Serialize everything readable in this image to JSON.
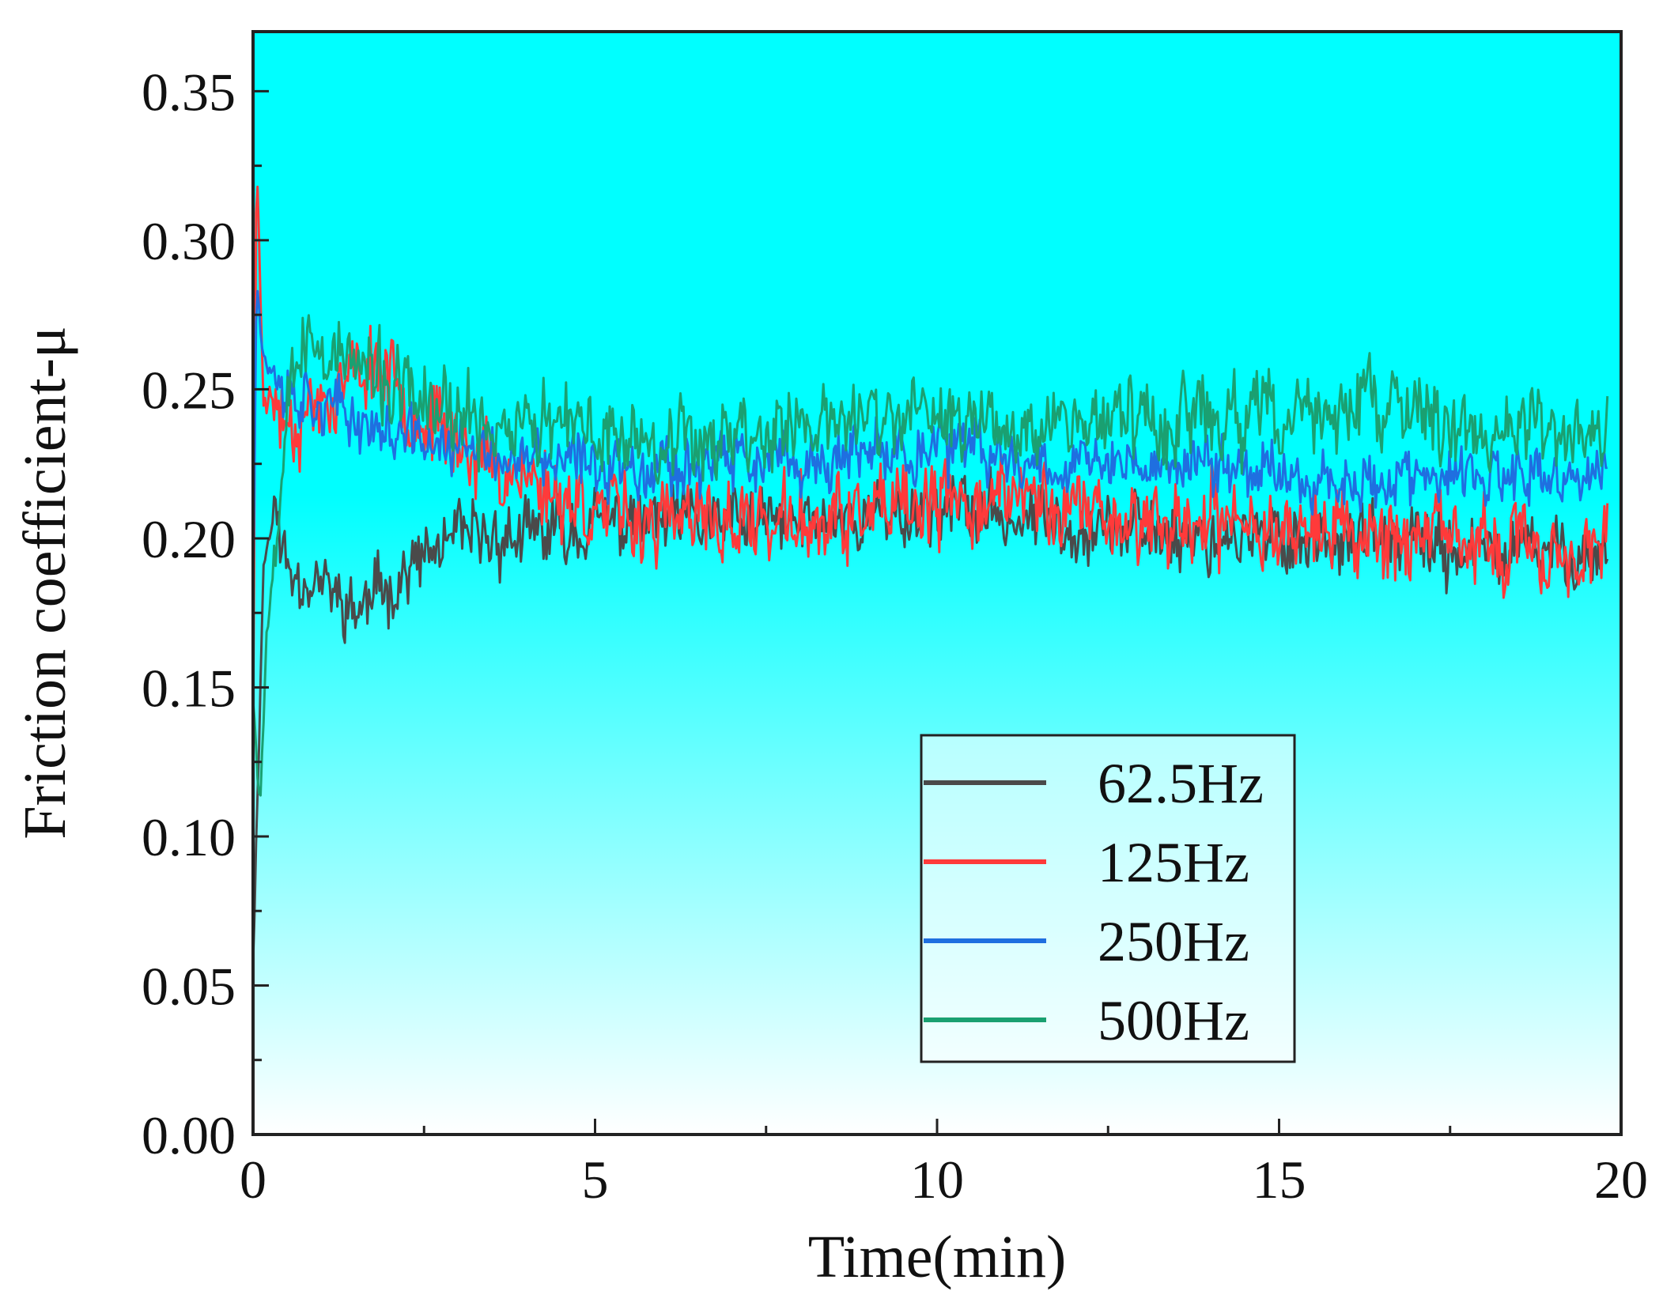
{
  "chart_data": {
    "type": "line",
    "title": "",
    "xlabel": "Time(min)",
    "ylabel": "Friction coefficient-μ",
    "xlim": [
      0,
      20
    ],
    "ylim": [
      0,
      0.37
    ],
    "xticks": [
      "0",
      "5",
      "10",
      "15",
      "20"
    ],
    "yticks": [
      "0.00",
      "0.05",
      "0.10",
      "0.15",
      "0.20",
      "0.25",
      "0.30",
      "0.35"
    ],
    "background_gradient": {
      "top": "#00ffff",
      "bottom": "#ffffff"
    },
    "legend_position": "bottom-right",
    "series": [
      {
        "name": "62.5Hz",
        "color": "#4a4a4a",
        "noise": 0.018,
        "seed": 11,
        "points": [
          [
            0,
            0.06
          ],
          [
            0.05,
            0.1
          ],
          [
            0.15,
            0.19
          ],
          [
            0.3,
            0.21
          ],
          [
            0.5,
            0.19
          ],
          [
            1.0,
            0.185
          ],
          [
            1.5,
            0.175
          ],
          [
            2.0,
            0.185
          ],
          [
            3.0,
            0.2
          ],
          [
            4.0,
            0.2
          ],
          [
            5.0,
            0.205
          ],
          [
            6.0,
            0.205
          ],
          [
            8.0,
            0.205
          ],
          [
            10.0,
            0.21
          ],
          [
            12.0,
            0.205
          ],
          [
            14.0,
            0.2
          ],
          [
            16.0,
            0.2
          ],
          [
            18.0,
            0.195
          ],
          [
            19.8,
            0.195
          ]
        ]
      },
      {
        "name": "125Hz",
        "color": "#ff3a3a",
        "noise": 0.022,
        "seed": 23,
        "points": [
          [
            0,
            0.13
          ],
          [
            0.05,
            0.33
          ],
          [
            0.15,
            0.25
          ],
          [
            0.5,
            0.24
          ],
          [
            1.0,
            0.245
          ],
          [
            1.8,
            0.26
          ],
          [
            2.5,
            0.24
          ],
          [
            3.5,
            0.225
          ],
          [
            4.5,
            0.215
          ],
          [
            5.0,
            0.21
          ],
          [
            6.0,
            0.205
          ],
          [
            8.0,
            0.205
          ],
          [
            10.0,
            0.21
          ],
          [
            11.0,
            0.215
          ],
          [
            13.0,
            0.205
          ],
          [
            15.0,
            0.205
          ],
          [
            17.0,
            0.2
          ],
          [
            19.0,
            0.195
          ],
          [
            19.8,
            0.195
          ]
        ]
      },
      {
        "name": "250Hz",
        "color": "#1f6fe0",
        "noise": 0.016,
        "seed": 37,
        "points": [
          [
            0,
            0.18
          ],
          [
            0.05,
            0.29
          ],
          [
            0.15,
            0.26
          ],
          [
            0.5,
            0.25
          ],
          [
            1.0,
            0.245
          ],
          [
            2.0,
            0.235
          ],
          [
            3.0,
            0.23
          ],
          [
            4.0,
            0.225
          ],
          [
            5.0,
            0.225
          ],
          [
            6.0,
            0.225
          ],
          [
            8.0,
            0.225
          ],
          [
            10.0,
            0.23
          ],
          [
            12.0,
            0.225
          ],
          [
            14.0,
            0.225
          ],
          [
            16.0,
            0.22
          ],
          [
            18.0,
            0.22
          ],
          [
            19.8,
            0.22
          ]
        ]
      },
      {
        "name": "500Hz",
        "color": "#1aa071",
        "noise": 0.022,
        "seed": 53,
        "points": [
          [
            0,
            0.15
          ],
          [
            0.1,
            0.11
          ],
          [
            0.2,
            0.17
          ],
          [
            0.35,
            0.2
          ],
          [
            0.5,
            0.26
          ],
          [
            1.0,
            0.265
          ],
          [
            2.0,
            0.25
          ],
          [
            3.0,
            0.24
          ],
          [
            5.0,
            0.235
          ],
          [
            7.0,
            0.235
          ],
          [
            9.0,
            0.24
          ],
          [
            11.0,
            0.24
          ],
          [
            13.0,
            0.24
          ],
          [
            15.0,
            0.24
          ],
          [
            16.5,
            0.245
          ],
          [
            18.0,
            0.235
          ],
          [
            19.8,
            0.235
          ]
        ]
      }
    ]
  }
}
